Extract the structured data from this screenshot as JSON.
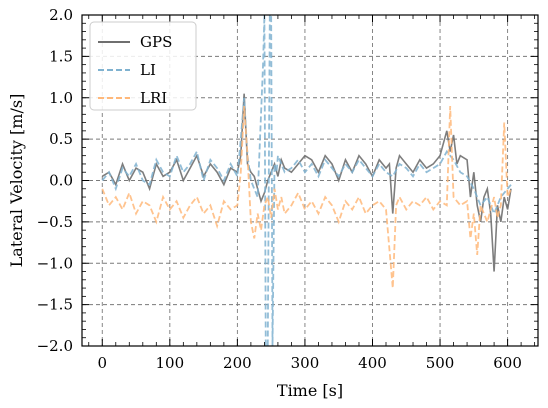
{
  "chart_data": {
    "type": "line",
    "xlabel": "Time [s]",
    "ylabel": "Lateral Velocity [m/s]",
    "xlim": [
      -30,
      645
    ],
    "ylim": [
      -2.0,
      2.0
    ],
    "x_ticks": [
      0,
      100,
      200,
      300,
      400,
      500,
      600
    ],
    "y_ticks": [
      -2.0,
      -1.5,
      -1.0,
      -0.5,
      0.0,
      0.5,
      1.0,
      1.5,
      2.0
    ],
    "y_tick_labels": [
      "−2.0",
      "−1.5",
      "−1.0",
      "−0.5",
      "0.0",
      "0.5",
      "1.0",
      "1.5",
      "2.0"
    ],
    "grid": true,
    "legend_position": "top-left",
    "series": [
      {
        "name": "GPS",
        "color": "#6f6f6f",
        "style": "solid",
        "x": [
          0,
          10,
          20,
          30,
          40,
          50,
          60,
          70,
          80,
          90,
          100,
          110,
          120,
          130,
          140,
          150,
          160,
          170,
          180,
          190,
          200,
          205,
          210,
          215,
          220,
          225,
          230,
          235,
          240,
          245,
          250,
          255,
          260,
          265,
          270,
          280,
          290,
          300,
          310,
          320,
          330,
          340,
          350,
          360,
          370,
          380,
          390,
          400,
          410,
          420,
          425,
          430,
          435,
          440,
          450,
          460,
          470,
          480,
          490,
          500,
          510,
          515,
          520,
          525,
          530,
          540,
          545,
          550,
          555,
          560,
          565,
          570,
          575,
          580,
          585,
          590,
          595,
          600,
          605
        ],
        "y": [
          0.05,
          0.1,
          -0.05,
          0.2,
          0.0,
          0.15,
          0.1,
          -0.1,
          0.2,
          0.05,
          0.1,
          0.25,
          0.0,
          0.15,
          0.3,
          0.05,
          0.2,
          0.1,
          -0.05,
          0.15,
          0.1,
          0.3,
          1.05,
          0.2,
          0.1,
          0.05,
          -0.1,
          -0.25,
          -0.15,
          0.0,
          0.1,
          0.2,
          0.05,
          0.25,
          0.15,
          0.1,
          0.2,
          0.3,
          0.25,
          0.1,
          0.3,
          0.2,
          0.0,
          0.25,
          0.1,
          0.3,
          0.2,
          0.05,
          0.25,
          0.15,
          0.2,
          -0.4,
          0.15,
          0.3,
          0.2,
          0.1,
          0.25,
          0.15,
          0.2,
          0.3,
          0.6,
          0.35,
          0.55,
          0.2,
          0.3,
          0.25,
          -0.2,
          0.1,
          -0.3,
          -0.5,
          -0.2,
          -0.1,
          -0.4,
          -1.1,
          -0.3,
          -0.5,
          -0.2,
          -0.35,
          -0.1
        ]
      },
      {
        "name": "LI",
        "color": "#7fb2d0",
        "style": "dashed",
        "x": [
          0,
          10,
          20,
          30,
          40,
          50,
          60,
          70,
          80,
          90,
          100,
          110,
          120,
          130,
          140,
          150,
          160,
          170,
          180,
          190,
          200,
          205,
          210,
          215,
          220,
          225,
          230,
          234,
          238,
          240,
          242,
          245,
          248,
          250,
          252,
          255,
          258,
          260,
          265,
          270,
          280,
          290,
          300,
          310,
          320,
          330,
          340,
          350,
          360,
          370,
          380,
          390,
          400,
          410,
          420,
          430,
          440,
          450,
          460,
          470,
          480,
          490,
          500,
          510,
          520,
          530,
          540,
          550,
          560,
          570,
          580,
          590,
          600,
          605
        ],
        "y": [
          0.0,
          0.1,
          -0.1,
          0.15,
          0.05,
          0.2,
          0.0,
          -0.05,
          0.25,
          0.1,
          0.05,
          0.3,
          0.1,
          0.2,
          0.35,
          0.0,
          0.25,
          0.15,
          0.0,
          0.2,
          0.05,
          0.5,
          1.0,
          0.3,
          0.0,
          -0.1,
          -0.2,
          0.6,
          1.4,
          2.0,
          -2.0,
          -2.0,
          2.0,
          2.0,
          -2.0,
          0.2,
          0.1,
          0.3,
          0.2,
          0.1,
          0.15,
          0.25,
          0.1,
          0.2,
          0.05,
          0.25,
          0.15,
          0.05,
          0.2,
          0.1,
          0.25,
          0.15,
          0.05,
          0.2,
          0.1,
          0.05,
          0.2,
          0.15,
          0.05,
          0.2,
          0.1,
          0.15,
          0.2,
          0.35,
          0.25,
          0.1,
          0.05,
          -0.1,
          -0.3,
          -0.2,
          -0.4,
          -0.2,
          -0.1,
          -0.05
        ]
      },
      {
        "name": "LRI",
        "color": "#ffb87a",
        "style": "dashed",
        "x": [
          0,
          10,
          20,
          30,
          40,
          50,
          60,
          70,
          80,
          90,
          100,
          110,
          120,
          130,
          140,
          150,
          160,
          170,
          180,
          190,
          200,
          205,
          210,
          215,
          220,
          225,
          230,
          235,
          240,
          245,
          250,
          255,
          260,
          265,
          270,
          280,
          290,
          300,
          310,
          320,
          330,
          340,
          350,
          360,
          370,
          380,
          390,
          400,
          410,
          420,
          430,
          435,
          440,
          450,
          460,
          470,
          480,
          490,
          500,
          510,
          515,
          520,
          530,
          540,
          545,
          550,
          555,
          560,
          570,
          580,
          585,
          590,
          595,
          600,
          605
        ],
        "y": [
          -0.1,
          -0.3,
          -0.2,
          -0.35,
          -0.15,
          -0.4,
          -0.25,
          -0.3,
          -0.5,
          -0.2,
          -0.35,
          -0.25,
          -0.45,
          -0.3,
          -0.2,
          -0.4,
          -0.3,
          -0.55,
          -0.25,
          -0.35,
          -0.3,
          0.1,
          0.9,
          0.3,
          -0.5,
          -0.7,
          -0.4,
          -0.6,
          -0.3,
          -0.2,
          -0.45,
          -0.1,
          -0.35,
          -0.2,
          -0.4,
          -0.3,
          -0.15,
          -0.35,
          -0.25,
          -0.4,
          -0.2,
          -0.3,
          -0.5,
          -0.25,
          -0.35,
          -0.2,
          -0.4,
          -0.3,
          -0.25,
          -0.35,
          -1.3,
          -0.3,
          -0.2,
          -0.35,
          -0.25,
          -0.3,
          -0.2,
          -0.35,
          -0.25,
          -0.3,
          0.9,
          -0.2,
          -0.3,
          -0.25,
          -0.7,
          -0.4,
          -0.9,
          -0.3,
          -0.5,
          -0.2,
          -0.45,
          -0.3,
          0.7,
          -0.2,
          -0.1
        ]
      }
    ]
  }
}
